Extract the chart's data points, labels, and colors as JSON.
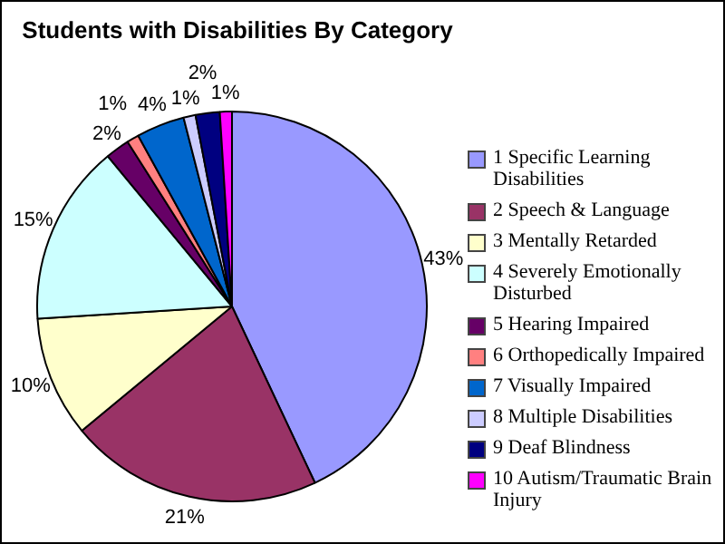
{
  "chart_data": {
    "type": "pie",
    "title": "Students with Disabilities By Category",
    "categories": [
      "1 Specific Learning Disabilities",
      "2 Speech & Language",
      "3 Mentally Retarded",
      "4 Severely Emotionally Disturbed",
      "5 Hearing Impaired",
      "6 Orthopedically Impaired",
      "7 Visually Impaired",
      "8 Multiple Disabilities",
      "9 Deaf Blindness",
      "10 Autism/Traumatic Brain Injury"
    ],
    "values": [
      43,
      21,
      10,
      15,
      2,
      1,
      4,
      1,
      2,
      1
    ],
    "value_labels": [
      "43%",
      "21%",
      "10%",
      "15%",
      "2%",
      "1%",
      "4%",
      "1%",
      "2%",
      "1%"
    ],
    "colors": [
      "#9999ff",
      "#993366",
      "#ffffcc",
      "#ccffff",
      "#660066",
      "#ff8080",
      "#0066cc",
      "#ccccff",
      "#000080",
      "#ff00ff"
    ],
    "legend": "right"
  }
}
